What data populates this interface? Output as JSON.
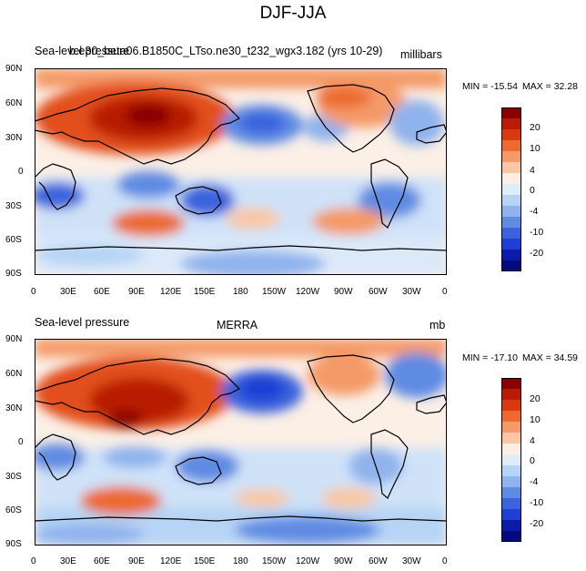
{
  "figure": {
    "title": "DJF-JJA"
  },
  "panels": [
    {
      "left_label": "Sea-level pressure",
      "center_label": "b.e30_beta06.B1850C_LTso.ne30_t232_wgx3.182 (yrs 10-29)",
      "units": "millibars",
      "min_text": "MIN = -15.54",
      "max_text": "MAX =  32.28"
    },
    {
      "left_label": "Sea-level pressure",
      "center_label": "MERRA",
      "units": "mb",
      "min_text": "MIN = -17.10",
      "max_text": "MAX =  34.59"
    }
  ],
  "lat_ticks": [
    "90N",
    "60N",
    "30N",
    "0",
    "30S",
    "60S",
    "90S"
  ],
  "lon_ticks": [
    "0",
    "30E",
    "60E",
    "90E",
    "120E",
    "150E",
    "180",
    "150W",
    "120W",
    "90W",
    "60W",
    "30W",
    "0"
  ],
  "colorbar": {
    "labels": [
      "20",
      "10",
      "4",
      "0",
      "-4",
      "-10",
      "-20"
    ],
    "colors": [
      "#8a0000",
      "#b81c06",
      "#d83a10",
      "#ec6a30",
      "#f49a68",
      "#f9c7a4",
      "#fdeee4",
      "#ddeefa",
      "#b6d4f5",
      "#8fb3ed",
      "#5f8be3",
      "#3a63dd",
      "#1f3fd4",
      "#0b1aa8",
      "#020a80"
    ]
  },
  "colors": {
    "land_outline": "#000000",
    "strong_high": "#b01a05",
    "high": "#e2501e",
    "weak_high": "#f7b58c",
    "neutral": "#fbefe6",
    "weak_low": "#cfe2f8",
    "low": "#5f8be3",
    "strong_low": "#1d3ed0"
  }
}
